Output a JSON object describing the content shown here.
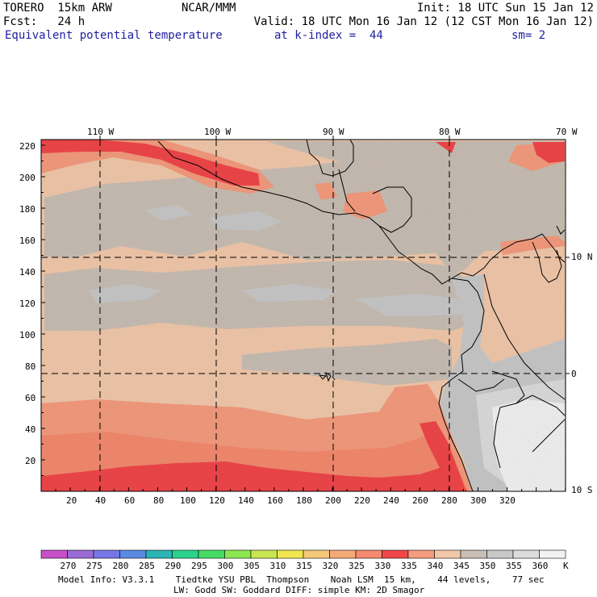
{
  "header": {
    "model": "TORERO  15km ARW",
    "org": "NCAR/MMM",
    "init": "Init: 18 UTC Sun 15 Jan 12",
    "fcst": "Fcst:   24 h",
    "valid": "Valid: 18 UTC Mon 16 Jan 12 (12 CST Mon 16 Jan 12)",
    "field": "Equivalent potential temperature",
    "level": "at k-index =  44",
    "smooth": "sm= 2"
  },
  "map": {
    "top_lon_labels": [
      "110 W",
      "100 W",
      "90 W",
      "80 W",
      "70 W"
    ],
    "right_lat_labels": [
      "10 N",
      "0",
      "10 S"
    ],
    "left_grid_labels": [
      "220",
      "200",
      "180",
      "160",
      "140",
      "120",
      "100",
      "80",
      "60",
      "40",
      "20"
    ],
    "bottom_grid_labels": [
      "20",
      "40",
      "60",
      "80",
      "100",
      "120",
      "140",
      "160",
      "180",
      "200",
      "220",
      "240",
      "260",
      "280",
      "300",
      "320"
    ]
  },
  "colorbar": {
    "labels": [
      "270",
      "275",
      "280",
      "285",
      "290",
      "295",
      "300",
      "305",
      "310",
      "315",
      "320",
      "325",
      "330",
      "335",
      "340",
      "345",
      "350",
      "355",
      "360"
    ],
    "unit": "K",
    "colors": [
      "#c850c8",
      "#9a6ad6",
      "#7676e8",
      "#5a8ae0",
      "#2ab4b4",
      "#2ad28c",
      "#46dc64",
      "#8ce650",
      "#c8e650",
      "#f0e650",
      "#f5c87a",
      "#f5aa78",
      "#f58a6e",
      "#f0464a",
      "#f59b7e",
      "#f2c8aa",
      "#c8beb4",
      "#c8c8c8",
      "#dcdcdc",
      "#f2f2f2"
    ]
  },
  "footer": {
    "line1": "Model Info: V3.3.1    Tiedtke YSU PBL  Thompson    Noah LSM  15 km,    44 levels,    77 sec",
    "line2": "LW: Godd SW: Goddard DIFF: simple KM: 2D Smagor"
  }
}
